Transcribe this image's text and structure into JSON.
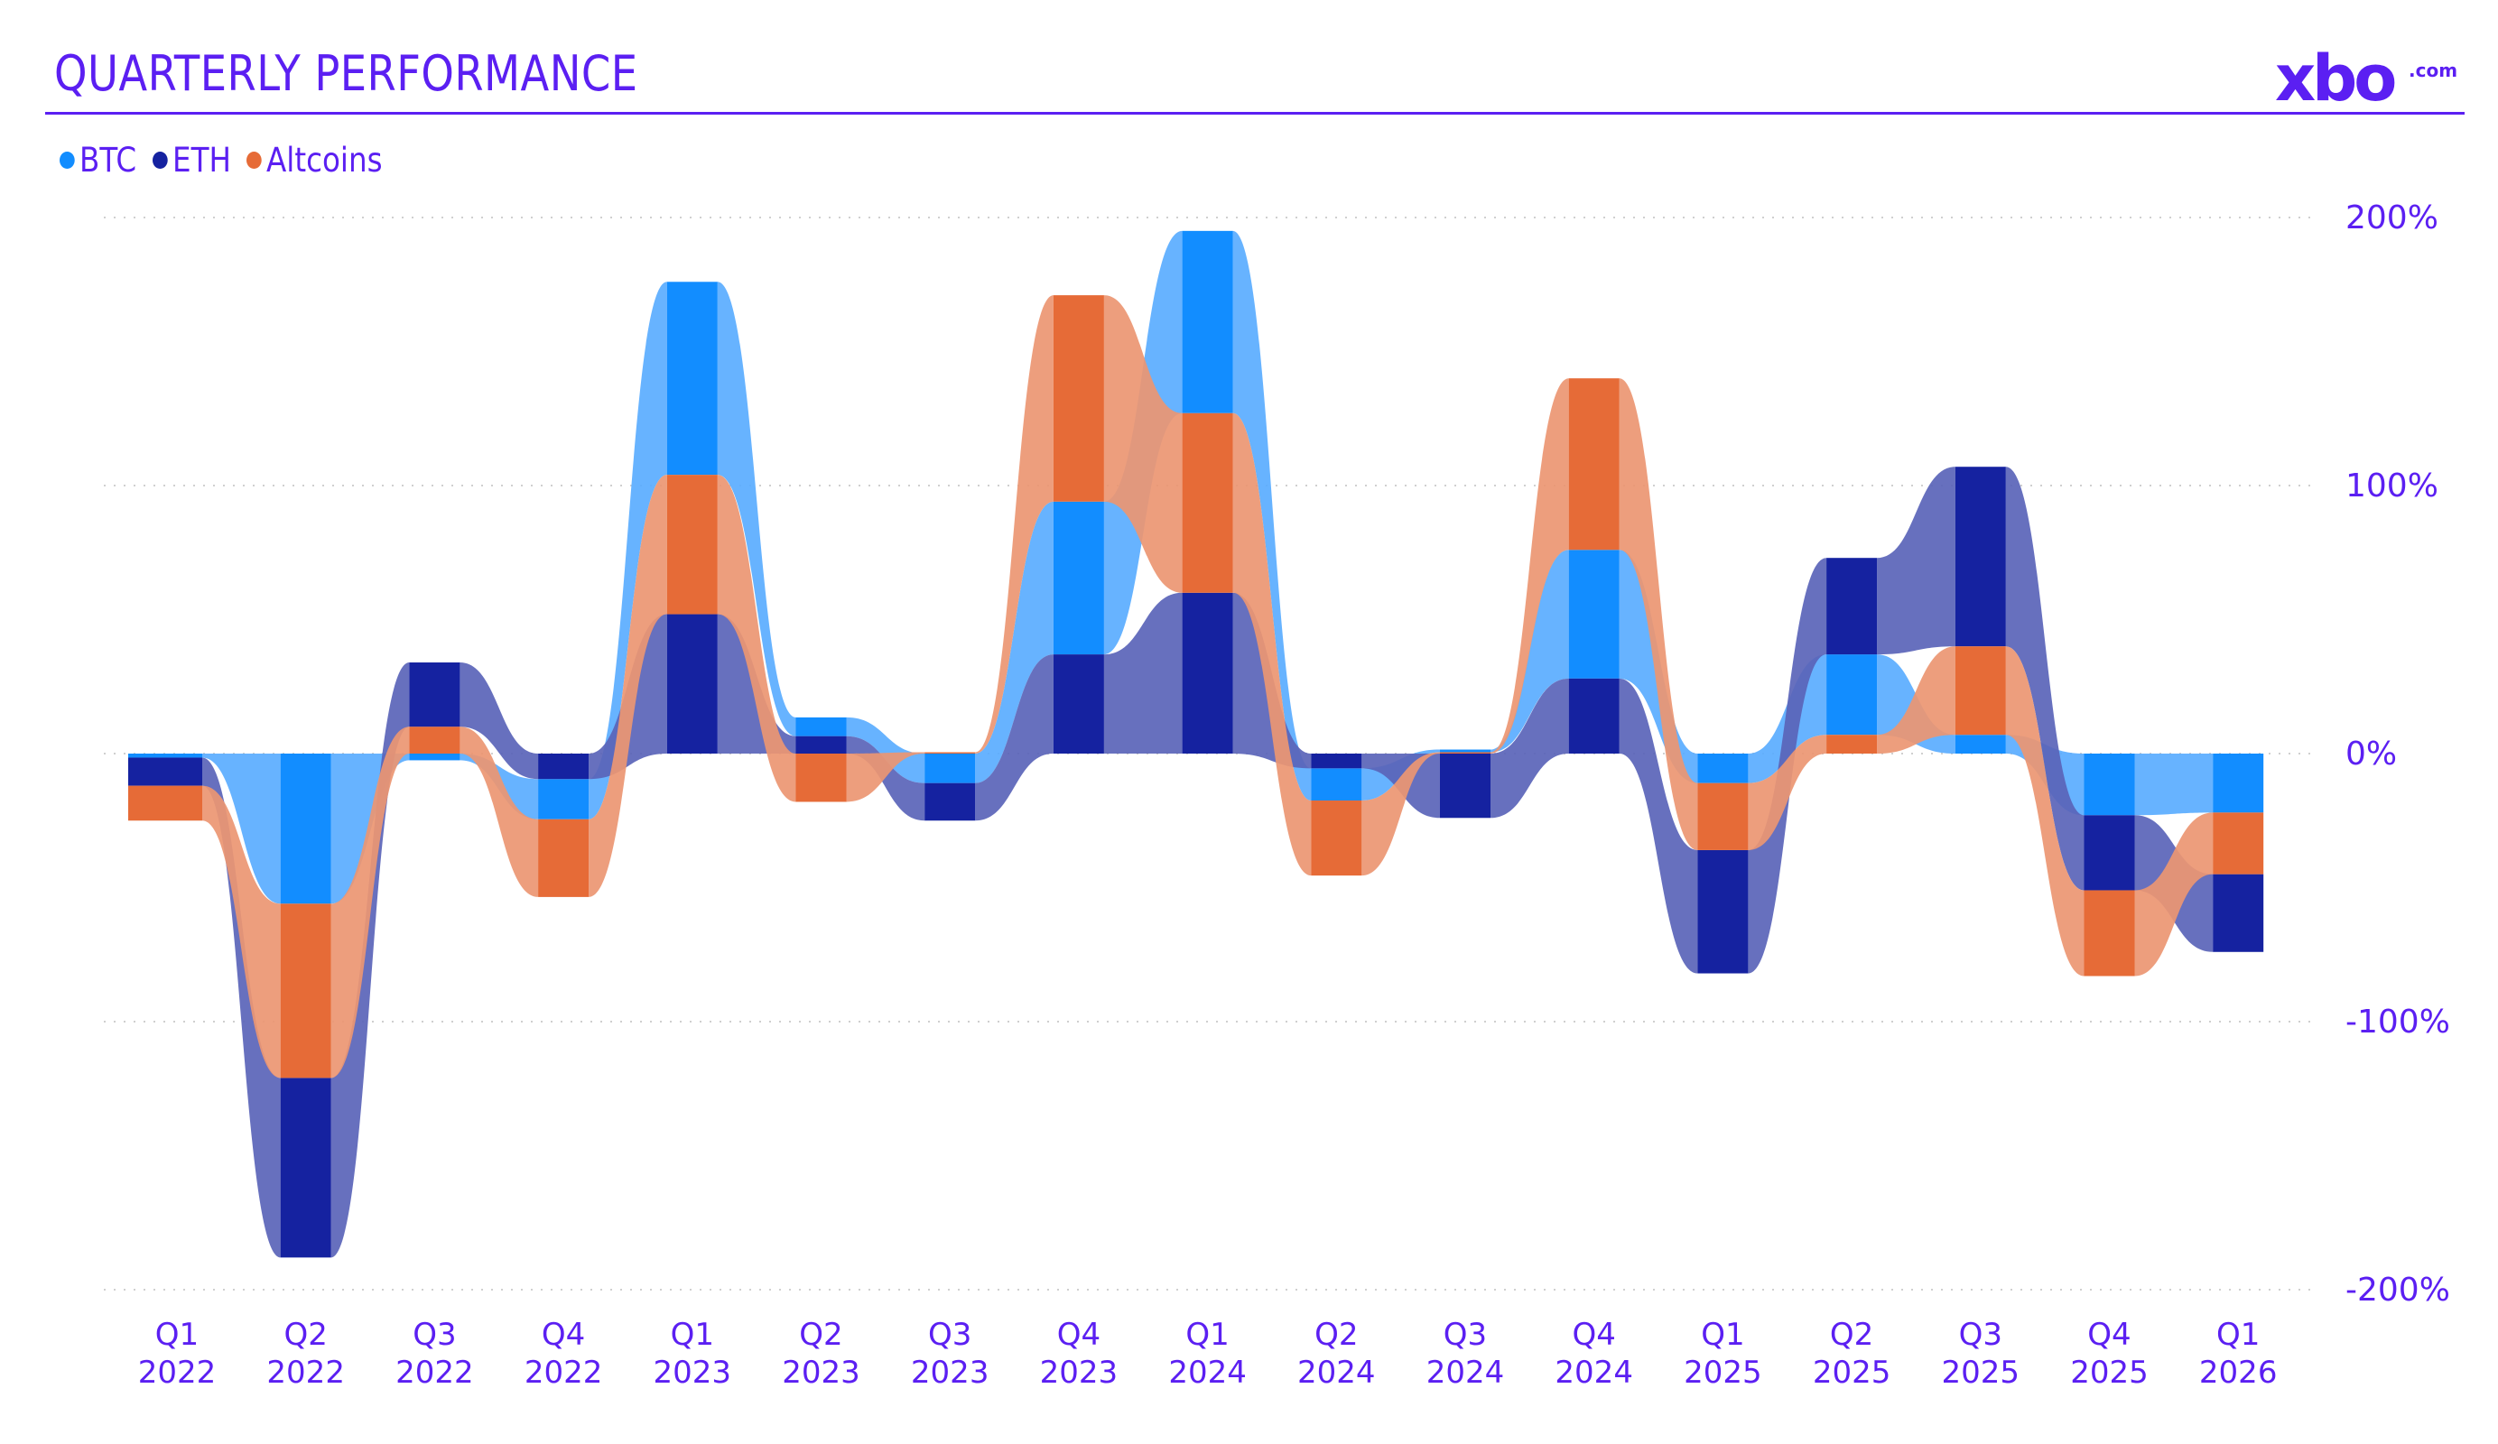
{
  "header": {
    "title": "QUARTERLY PERFORMANCE",
    "logo_text": "xbo",
    "logo_tld": ".com"
  },
  "colors": {
    "accent": "#5b1ff2",
    "BTC": "#128dff",
    "ETH": "#1522a0",
    "Altcoins": "#e66b37",
    "grid": "#cfcfcf"
  },
  "legend": [
    {
      "name": "BTC",
      "color": "#128dff"
    },
    {
      "name": "ETH",
      "color": "#1522a0"
    },
    {
      "name": "Altcoins",
      "color": "#e66b37"
    }
  ],
  "chart_data": {
    "type": "bar",
    "stacked": true,
    "title": "QUARTERLY PERFORMANCE",
    "xlabel": "",
    "ylabel": "",
    "ylim": [
      -200,
      200
    ],
    "yticks": [
      200,
      100,
      0,
      -100,
      -200
    ],
    "ytick_labels": [
      "200%",
      "100%",
      "0%",
      "-100%",
      "-200%"
    ],
    "grid": true,
    "legend_position": "top-left",
    "categories": [
      [
        "Q1",
        "2022"
      ],
      [
        "Q2",
        "2022"
      ],
      [
        "Q3",
        "2022"
      ],
      [
        "Q4",
        "2022"
      ],
      [
        "Q1",
        "2023"
      ],
      [
        "Q2",
        "2023"
      ],
      [
        "Q3",
        "2023"
      ],
      [
        "Q4",
        "2023"
      ],
      [
        "Q1",
        "2024"
      ],
      [
        "Q2",
        "2024"
      ],
      [
        "Q3",
        "2024"
      ],
      [
        "Q4",
        "2024"
      ],
      [
        "Q1",
        "2025"
      ],
      [
        "Q2",
        "2025"
      ],
      [
        "Q3",
        "2025"
      ],
      [
        "Q4",
        "2025"
      ],
      [
        "Q1",
        "2026"
      ]
    ],
    "series": [
      {
        "name": "BTC",
        "values": [
          -1.5,
          -56,
          -2.5,
          -15,
          72,
          7,
          -11,
          57,
          68,
          -12,
          1,
          48,
          -11,
          30,
          7,
          -23,
          -22
        ]
      },
      {
        "name": "ETH",
        "values": [
          -10.5,
          -67,
          24,
          -9.5,
          52,
          6.5,
          -14,
          37,
          60,
          -5.5,
          -24,
          28,
          -46,
          36,
          67,
          -28,
          -29
        ]
      },
      {
        "name": "Altcoins",
        "values": [
          -13,
          -65,
          10,
          -29,
          52,
          -18,
          0.5,
          77,
          67,
          -28,
          0.5,
          64,
          -25,
          7,
          33,
          -32,
          -23
        ]
      }
    ]
  }
}
